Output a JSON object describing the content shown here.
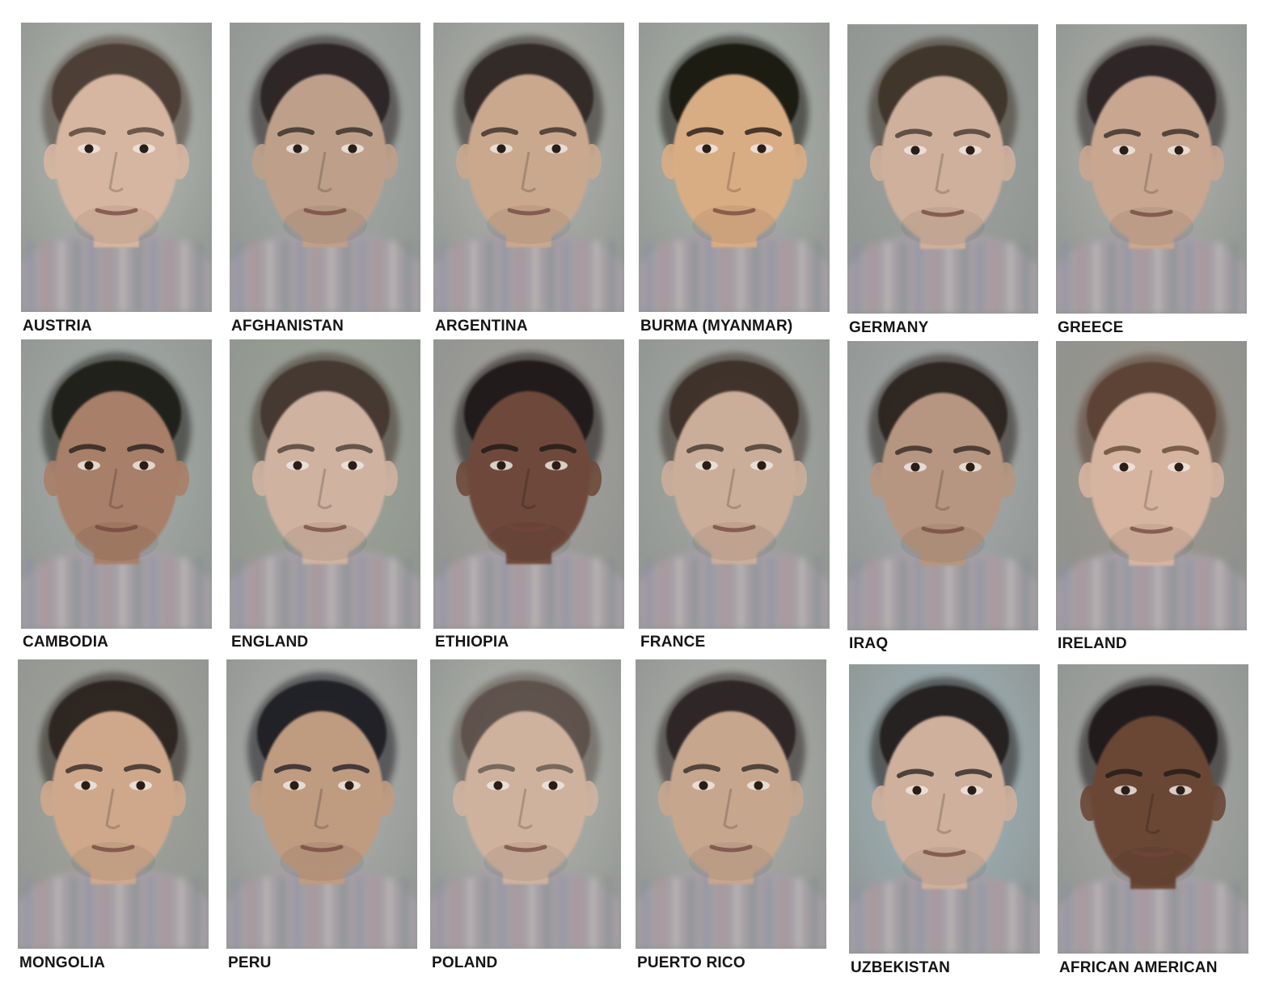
{
  "portraits": [
    {
      "label": "AUSTRIA",
      "skin": "#d6b6a0",
      "hair": "#4a3a30",
      "bg": "#b9bdb4"
    },
    {
      "label": "AFGHANISTAN",
      "skin": "#bea08a",
      "hair": "#2a2420",
      "bg": "#a9aeaa"
    },
    {
      "label": "ARGENTINA",
      "skin": "#c9a88e",
      "hair": "#2f2620",
      "bg": "#b7b9b1"
    },
    {
      "label": "BURMA (MYANMAR)",
      "skin": "#d9ad84",
      "hair": "#17120f",
      "bg": "#b1b8b0"
    },
    {
      "label": "GERMANY",
      "skin": "#cfb09c",
      "hair": "#3d3028",
      "bg": "#9fa5a1"
    },
    {
      "label": "GREECE",
      "skin": "#c8a690",
      "hair": "#2c2420",
      "bg": "#b2b4ad"
    },
    {
      "label": "CAMBODIA",
      "skin": "#a87f68",
      "hair": "#1f1a18",
      "bg": "#a9b0ad"
    },
    {
      "label": "ENGLAND",
      "skin": "#cfb2a0",
      "hair": "#43362d",
      "bg": "#9ea796"
    },
    {
      "label": "ETHIOPIA",
      "skin": "#6e4a3a",
      "hair": "#1a1513",
      "bg": "#a5a09c"
    },
    {
      "label": "FRANCE",
      "skin": "#cbae9a",
      "hair": "#3a2f27",
      "bg": "#a7aaa4"
    },
    {
      "label": "IRAQ",
      "skin": "#b69680",
      "hair": "#2a221d",
      "bg": "#a9aeb0"
    },
    {
      "label": "IRELAND",
      "skin": "#d6b4a0",
      "hair": "#5a4130",
      "bg": "#9c948a"
    },
    {
      "label": "MONGOLIA",
      "skin": "#cfa88c",
      "hair": "#2a221e",
      "bg": "#a7a89e"
    },
    {
      "label": "PERU",
      "skin": "#bf9b80",
      "hair": "#1c1a22",
      "bg": "#b3b4b1"
    },
    {
      "label": "POLAND",
      "skin": "#cfb29e",
      "hair": "#5b5048",
      "bg": "#b8bab2"
    },
    {
      "label": "PUERTO RICO",
      "skin": "#c7a68e",
      "hair": "#2a2420",
      "bg": "#b2b3ad"
    },
    {
      "label": "UZBEKISTAN",
      "skin": "#cfb09c",
      "hair": "#221e1c",
      "bg": "#9fb8c0"
    },
    {
      "label": "AFRICAN AMERICAN",
      "skin": "#6a4636",
      "hair": "#1c1714",
      "bg": "#a9aba8"
    }
  ]
}
